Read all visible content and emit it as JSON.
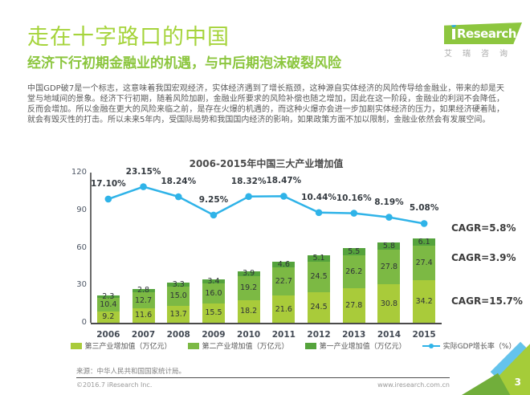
{
  "header": {
    "title": "走在十字路口的中国",
    "subtitle": "经济下行初期金融业的机遇，与中后期泡沫破裂风险",
    "logo": {
      "brand": "iResearch",
      "brand_rest": "Research",
      "caption": "艾瑞咨询"
    }
  },
  "body": {
    "paragraph": "中国GDP破7是一个标志，这意味着我国宏观经济，实体经济遇到了增长瓶颈，这种源自实体经济的风险传导给金融业，带来的却是天堂与地域间的景象。经济下行初期，随着风险加剧，金融业所要求的风险补偿也随之增加，因此在这一阶段，金融业的利润不会降低，反而会增加。所以金融在更大的风险来临之前，是存在火爆的机遇的，而这种火爆亦会进一步加剧实体经济的压力，如果经济硬着陆，就会有毁灭性的打击。所以未来5年内，受国际局势和我国国内经济的影响，如果政策方面不加以限制，金融业依然会有发展空间。"
  },
  "chart_data": {
    "type": "bar",
    "subtype": "stacked-bar-with-line",
    "title": "2006-2015年中国三大产业增加值",
    "categories": [
      "2006",
      "2007",
      "2008",
      "2009",
      "2010",
      "2011",
      "2012",
      "2013",
      "2014",
      "2015"
    ],
    "series": [
      {
        "name": "第三产业增加值（万亿元）",
        "color": "#a9cb3a",
        "values": [
          9.2,
          11.6,
          13.7,
          15.5,
          18.2,
          21.6,
          24.5,
          27.8,
          30.8,
          34.2
        ]
      },
      {
        "name": "第二产业增加值（万亿元）",
        "color": "#7cb944",
        "values": [
          10.4,
          12.7,
          15.0,
          16.0,
          19.2,
          22.7,
          24.5,
          26.2,
          27.8,
          27.4
        ]
      },
      {
        "name": "第一产业增加值（万亿元）",
        "color": "#55a33c",
        "values": [
          2.3,
          2.8,
          3.3,
          3.4,
          3.9,
          4.6,
          5.1,
          5.5,
          5.8,
          6.1
        ]
      }
    ],
    "line_series": {
      "name": "实际GDP增长率（%）",
      "color": "#2fb3e8",
      "values": [
        17.1,
        23.15,
        18.24,
        9.25,
        18.32,
        18.47,
        10.44,
        10.16,
        8.19,
        5.08
      ]
    },
    "y_ticks": [
      0,
      30,
      60,
      90,
      120
    ],
    "ylim": [
      0,
      120
    ],
    "xlabel": "",
    "ylabel": "",
    "grid": false,
    "legend_position": "bottom",
    "annotations": [
      "CAGR=5.8%",
      "CAGR=3.9%",
      "CAGR=15.7%"
    ]
  },
  "footer": {
    "source": "来源：中华人民共和国国家统计局。",
    "copyright": "©2016.7 iResearch Inc.",
    "website": "www.iresearch.com.cn"
  },
  "page_number": "3"
}
